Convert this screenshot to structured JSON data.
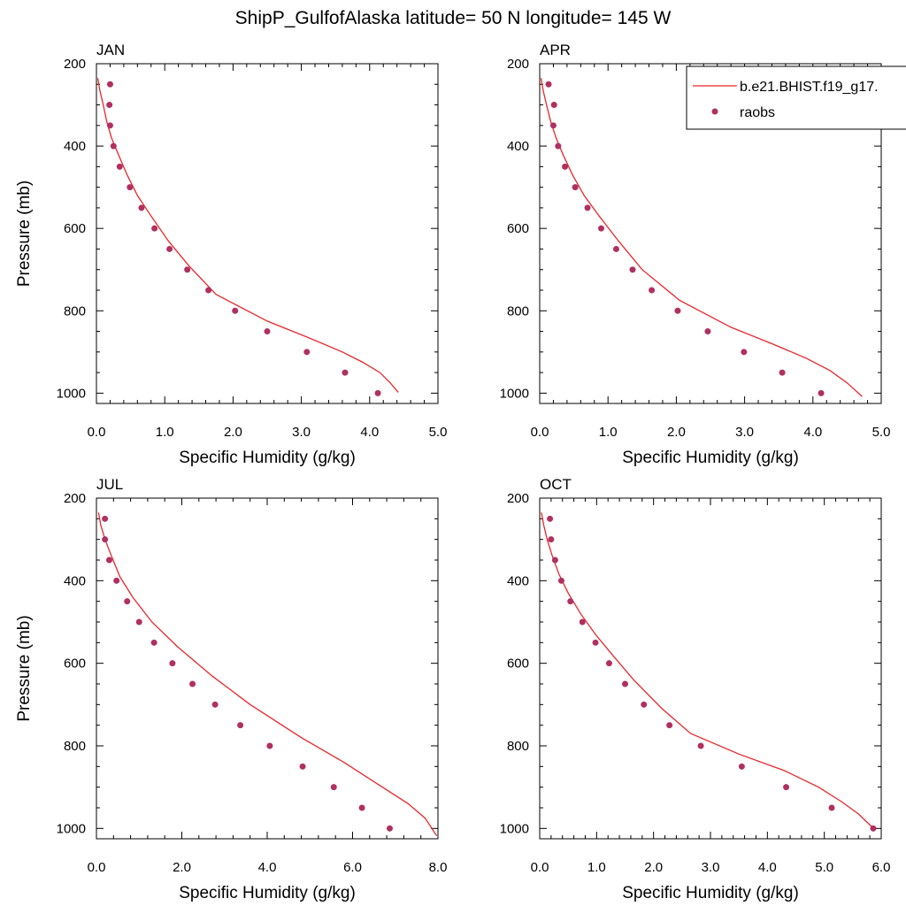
{
  "figure": {
    "title": "ShipP_GulfofAlaska  latitude= 50 N longitude= 145 W"
  },
  "legend": {
    "model_label": "b.e21.BHIST.f19_g17.",
    "obs_label": "raobs",
    "model_color": "#e8262b",
    "obs_color": "#b03060"
  },
  "chart_data": [
    {
      "type": "line",
      "title": "JAN",
      "xlabel": "Specific Humidity (g/kg)",
      "ylabel": "Pressure (mb)",
      "xlim": [
        0,
        5
      ],
      "ylim": [
        1025,
        200
      ],
      "y_inverted": true,
      "xticks": [
        0,
        1,
        2,
        3,
        4,
        5
      ],
      "xticklabels": [
        "0.0",
        "1.0",
        "2.0",
        "3.0",
        "4.0",
        "5.0"
      ],
      "yticks": [
        200,
        400,
        600,
        800,
        1000
      ],
      "yticklabels": [
        "200",
        "400",
        "600",
        "800",
        "1000"
      ],
      "series": [
        {
          "name": "b.e21.BHIST.f19_g17.",
          "kind": "line",
          "x": [
            0.02,
            0.05,
            0.1,
            0.15,
            0.22,
            0.32,
            0.45,
            0.6,
            0.8,
            1.05,
            1.35,
            1.75,
            2.5,
            3.1,
            3.6,
            3.9,
            4.15,
            4.3,
            4.42
          ],
          "y": [
            235,
            265,
            300,
            340,
            380,
            420,
            470,
            520,
            570,
            630,
            690,
            760,
            825,
            865,
            900,
            925,
            950,
            975,
            998
          ]
        },
        {
          "name": "raobs",
          "kind": "scatter",
          "x": [
            0.2,
            0.19,
            0.2,
            0.25,
            0.34,
            0.49,
            0.66,
            0.85,
            1.07,
            1.33,
            1.64,
            2.03,
            2.5,
            3.08,
            3.64,
            4.12
          ],
          "y": [
            250,
            300,
            350,
            400,
            450,
            500,
            550,
            600,
            650,
            700,
            750,
            800,
            850,
            900,
            950,
            1000
          ]
        }
      ]
    },
    {
      "type": "line",
      "title": "APR",
      "xlabel": "Specific Humidity (g/kg)",
      "ylabel": "",
      "xlim": [
        0,
        5
      ],
      "ylim": [
        1025,
        200
      ],
      "y_inverted": true,
      "xticks": [
        0,
        1,
        2,
        3,
        4,
        5
      ],
      "xticklabels": [
        "0.0",
        "1.0",
        "2.0",
        "3.0",
        "4.0",
        "5.0"
      ],
      "yticks": [
        200,
        400,
        600,
        800,
        1000
      ],
      "yticklabels": [
        "200",
        "400",
        "600",
        "800",
        "1000"
      ],
      "series": [
        {
          "name": "b.e21.BHIST.f19_g17.",
          "kind": "line",
          "x": [
            0.02,
            0.05,
            0.1,
            0.16,
            0.24,
            0.34,
            0.48,
            0.65,
            0.87,
            1.15,
            1.5,
            2.05,
            2.8,
            3.4,
            3.9,
            4.25,
            4.5,
            4.72
          ],
          "y": [
            235,
            265,
            300,
            340,
            380,
            420,
            470,
            520,
            570,
            630,
            700,
            775,
            840,
            880,
            915,
            945,
            975,
            1008
          ]
        },
        {
          "name": "raobs",
          "kind": "scatter",
          "x": [
            0.13,
            0.21,
            0.2,
            0.27,
            0.37,
            0.52,
            0.7,
            0.9,
            1.12,
            1.36,
            1.64,
            2.02,
            2.46,
            2.99,
            3.55,
            4.12
          ],
          "y": [
            250,
            300,
            350,
            400,
            450,
            500,
            550,
            600,
            650,
            700,
            750,
            800,
            850,
            900,
            950,
            1000
          ]
        }
      ]
    },
    {
      "type": "line",
      "title": "JUL",
      "xlabel": "Specific Humidity (g/kg)",
      "ylabel": "Pressure (mb)",
      "xlim": [
        0,
        8
      ],
      "ylim": [
        1025,
        200
      ],
      "y_inverted": true,
      "xticks": [
        0,
        2,
        4,
        6,
        8
      ],
      "xticklabels": [
        "0.0",
        "2.0",
        "4.0",
        "6.0",
        "8.0"
      ],
      "yticks": [
        200,
        400,
        600,
        800,
        1000
      ],
      "yticklabels": [
        "200",
        "400",
        "600",
        "800",
        "1000"
      ],
      "series": [
        {
          "name": "b.e21.BHIST.f19_g17.",
          "kind": "line",
          "x": [
            0.05,
            0.1,
            0.2,
            0.35,
            0.55,
            0.85,
            1.3,
            1.9,
            2.7,
            3.6,
            4.8,
            5.8,
            6.7,
            7.3,
            7.7,
            7.97
          ],
          "y": [
            235,
            265,
            300,
            340,
            390,
            440,
            500,
            560,
            630,
            700,
            780,
            840,
            900,
            940,
            975,
            1018
          ]
        },
        {
          "name": "raobs",
          "kind": "scatter",
          "x": [
            0.2,
            0.2,
            0.3,
            0.47,
            0.72,
            1.0,
            1.35,
            1.78,
            2.25,
            2.78,
            3.37,
            4.06,
            4.83,
            5.56,
            6.22,
            6.87
          ],
          "y": [
            250,
            300,
            350,
            400,
            450,
            500,
            550,
            600,
            650,
            700,
            750,
            800,
            850,
            900,
            950,
            1000
          ]
        }
      ]
    },
    {
      "type": "line",
      "title": "OCT",
      "xlabel": "Specific Humidity (g/kg)",
      "ylabel": "",
      "xlim": [
        0,
        6
      ],
      "ylim": [
        1025,
        200
      ],
      "y_inverted": true,
      "xticks": [
        0,
        1,
        2,
        3,
        4,
        5,
        6
      ],
      "xticklabels": [
        "0.0",
        "1.0",
        "2.0",
        "3.0",
        "4.0",
        "5.0",
        "6.0"
      ],
      "yticks": [
        200,
        400,
        600,
        800,
        1000
      ],
      "yticklabels": [
        "200",
        "400",
        "600",
        "800",
        "1000"
      ],
      "series": [
        {
          "name": "b.e21.BHIST.f19_g17.",
          "kind": "line",
          "x": [
            0.03,
            0.07,
            0.13,
            0.22,
            0.34,
            0.5,
            0.72,
            0.98,
            1.28,
            1.65,
            2.15,
            2.65,
            3.5,
            4.3,
            4.9,
            5.3,
            5.6,
            5.85
          ],
          "y": [
            235,
            265,
            300,
            340,
            385,
            430,
            480,
            530,
            580,
            640,
            710,
            770,
            820,
            860,
            900,
            935,
            965,
            998
          ]
        },
        {
          "name": "raobs",
          "kind": "scatter",
          "x": [
            0.18,
            0.2,
            0.27,
            0.38,
            0.54,
            0.75,
            0.98,
            1.22,
            1.5,
            1.83,
            2.28,
            2.83,
            3.55,
            4.33,
            5.13,
            5.86
          ],
          "y": [
            250,
            300,
            350,
            400,
            450,
            500,
            550,
            600,
            650,
            700,
            750,
            800,
            850,
            900,
            950,
            1000
          ]
        }
      ]
    }
  ]
}
